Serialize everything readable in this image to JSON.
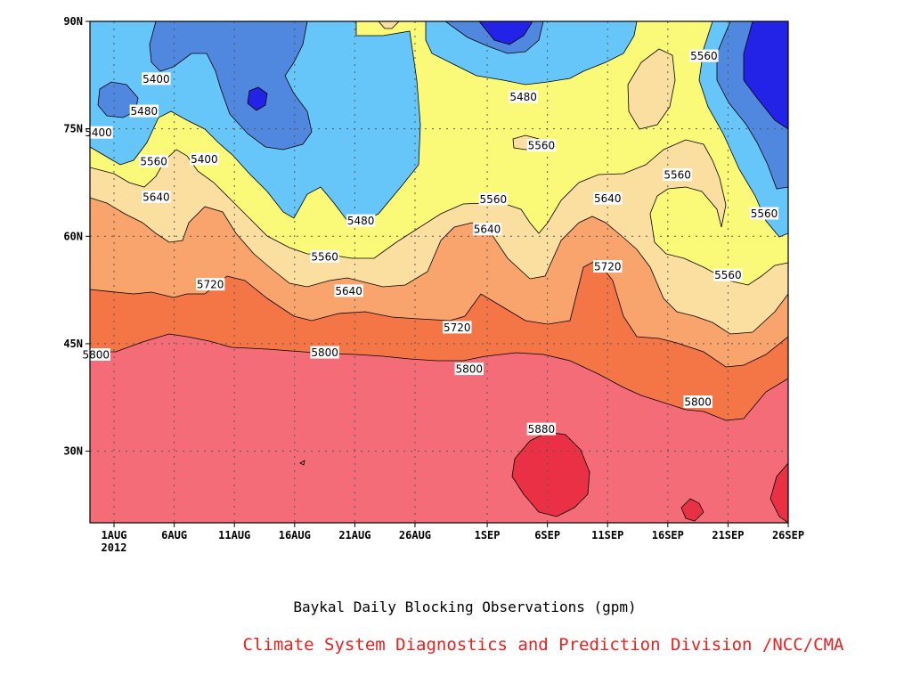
{
  "chart_data": {
    "type": "heatmap",
    "title": "Baykal Daily Blocking Observations (gpm)",
    "credit": "Climate System Diagnostics and Prediction Division /NCC/CMA",
    "xlabel": "",
    "ylabel": "",
    "x_ticks": [
      {
        "label": "1AUG",
        "day": 1
      },
      {
        "label": "6AUG",
        "day": 6
      },
      {
        "label": "11AUG",
        "day": 11
      },
      {
        "label": "16AUG",
        "day": 16
      },
      {
        "label": "21AUG",
        "day": 21
      },
      {
        "label": "26AUG",
        "day": 26
      },
      {
        "label": "1SEP",
        "day": 32
      },
      {
        "label": "6SEP",
        "day": 37
      },
      {
        "label": "11SEP",
        "day": 42
      },
      {
        "label": "16SEP",
        "day": 47
      },
      {
        "label": "21SEP",
        "day": 52
      },
      {
        "label": "26SEP",
        "day": 57
      }
    ],
    "x_year_label": "2012",
    "y_ticks": [
      {
        "label": "90N",
        "lat": 90
      },
      {
        "label": "75N",
        "lat": 75
      },
      {
        "label": "60N",
        "lat": 60
      },
      {
        "label": "45N",
        "lat": 45
      },
      {
        "label": "30N",
        "lat": 30
      }
    ],
    "xlim_days": [
      -1,
      57
    ],
    "ylim_lat": [
      20,
      90
    ],
    "contour_levels": [
      5400,
      5480,
      5560,
      5640,
      5720,
      5800,
      5880
    ],
    "fill_colors": {
      "lt5320": "#2323e8",
      "5320_5400": "#5088e0",
      "5400_5480": "#66c6fa",
      "5480_5560": "#fafa78",
      "5560_5640": "#fadfa0",
      "5640_5720": "#f8a46c",
      "5720_5800": "#f47646",
      "5800_5880": "#f46c78",
      "gt5880": "#ea3044"
    },
    "contour_labels": [
      {
        "text": "5400",
        "day": 4.5,
        "lat": 82
      },
      {
        "text": "5400",
        "day": -0.3,
        "lat": 74.5
      },
      {
        "text": "5480",
        "day": 3.5,
        "lat": 77.5
      },
      {
        "text": "5400",
        "day": 8.5,
        "lat": 70.8
      },
      {
        "text": "5560",
        "day": 4.3,
        "lat": 70.5
      },
      {
        "text": "5640",
        "day": 4.5,
        "lat": 65.5
      },
      {
        "text": "5480",
        "day": 21.5,
        "lat": 62.2
      },
      {
        "text": "5560",
        "day": 18.5,
        "lat": 57.2
      },
      {
        "text": "5720",
        "day": 9,
        "lat": 53.3
      },
      {
        "text": "5640",
        "day": 20.5,
        "lat": 52.4
      },
      {
        "text": "5800",
        "day": -0.5,
        "lat": 43.5
      },
      {
        "text": "5800",
        "day": 18.5,
        "lat": 43.8
      },
      {
        "text": "5720",
        "day": 29.5,
        "lat": 47.3
      },
      {
        "text": "5800",
        "day": 30.5,
        "lat": 41.5
      },
      {
        "text": "5560",
        "day": 32.5,
        "lat": 65.2
      },
      {
        "text": "5640",
        "day": 32,
        "lat": 61
      },
      {
        "text": "5480",
        "day": 35,
        "lat": 79.5
      },
      {
        "text": "5560",
        "day": 36.5,
        "lat": 72.7
      },
      {
        "text": "5640",
        "day": 42,
        "lat": 65.3
      },
      {
        "text": "5720",
        "day": 42,
        "lat": 55.8
      },
      {
        "text": "5560",
        "day": 47.8,
        "lat": 68.6
      },
      {
        "text": "5560",
        "day": 50,
        "lat": 85.2
      },
      {
        "text": "5560",
        "day": 55,
        "lat": 63.2
      },
      {
        "text": "5560",
        "day": 52,
        "lat": 54.6
      },
      {
        "text": "5880",
        "day": 36.5,
        "lat": 33.1
      },
      {
        "text": "5800",
        "day": 49.5,
        "lat": 36.9
      }
    ]
  }
}
